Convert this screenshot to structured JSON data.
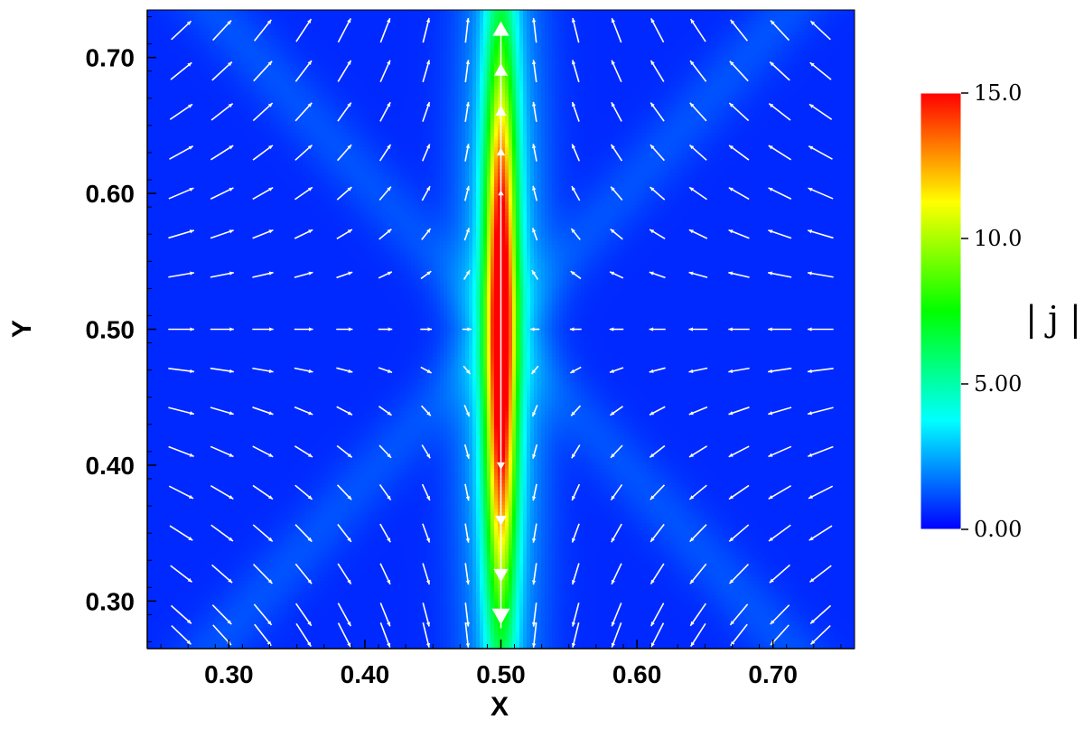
{
  "chart_data": {
    "type": "heatmap",
    "subtype": "vector-field-on-colormap",
    "xlabel": "X",
    "ylabel": "Y",
    "xlim": [
      0.24,
      0.76
    ],
    "ylim": [
      0.265,
      0.735
    ],
    "xticks": [
      0.3,
      0.4,
      0.5,
      0.6,
      0.7
    ],
    "yticks": [
      0.3,
      0.4,
      0.5,
      0.6,
      0.7
    ],
    "xtick_labels": [
      "0.30",
      "0.40",
      "0.50",
      "0.60",
      "0.70"
    ],
    "ytick_labels": [
      "0.30",
      "0.40",
      "0.50",
      "0.60",
      "0.70"
    ],
    "colorbar": {
      "title": "| j |",
      "min": 0.0,
      "max": 15.0,
      "ticks": [
        0.0,
        5.0,
        10.0,
        15.0
      ],
      "tick_labels": [
        "0.00",
        "5.00",
        "10.0",
        "15.0"
      ],
      "colormap": [
        "#0000ff",
        "#00ffff",
        "#00ff00",
        "#ffff00",
        "#ff0000"
      ]
    },
    "field": {
      "description_current_sheet": {
        "x_center": 0.5,
        "y_center": 0.5,
        "peak_value": 14.0,
        "half_length": 0.21,
        "half_width": 0.008
      },
      "background_value": 0.6
    },
    "vectors": {
      "x": [
        0.265,
        0.295,
        0.325,
        0.355,
        0.385,
        0.415,
        0.445,
        0.475,
        0.525,
        0.555,
        0.585,
        0.615,
        0.645,
        0.675,
        0.705,
        0.735
      ],
      "y": [
        0.72,
        0.69,
        0.66,
        0.63,
        0.6,
        0.57,
        0.54,
        0.5,
        0.47,
        0.44,
        0.41,
        0.38,
        0.35,
        0.32,
        0.29,
        0.275
      ],
      "pattern": "x-point inflow from left/right, outflow up/down along x=0.50",
      "color": "#ffffff"
    }
  }
}
